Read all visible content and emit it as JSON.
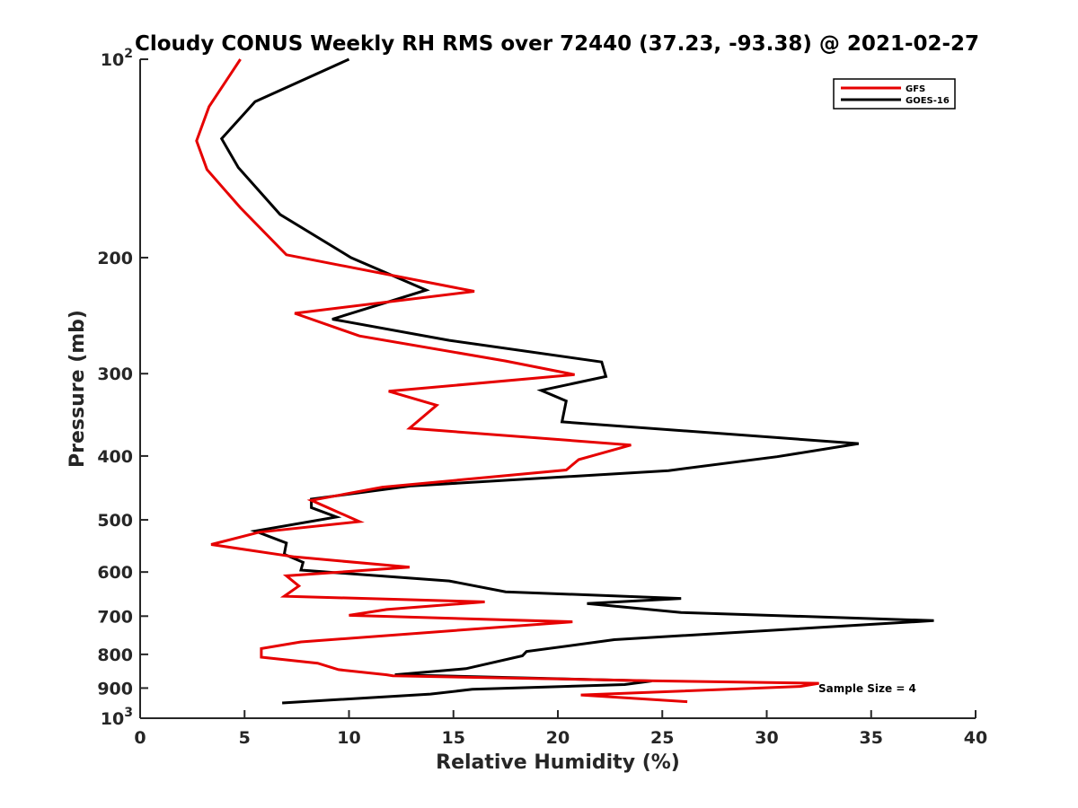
{
  "chart_data": {
    "type": "line",
    "title": "Cloudy CONUS Weekly RH RMS over 72440 (37.23, -93.38) @ 2021-02-27",
    "xlabel": "Relative Humidity (%)",
    "ylabel": "Pressure (mb)",
    "xlim": [
      0,
      40
    ],
    "ylim": [
      100,
      1000
    ],
    "y_scale": "log",
    "y_reversed": true,
    "x_ticks": [
      "0",
      "5",
      "10",
      "15",
      "20",
      "25",
      "30",
      "35",
      "40"
    ],
    "y_ticks": [
      {
        "value": 100,
        "base": "10",
        "exp": "2"
      },
      {
        "value": 200,
        "label": "200"
      },
      {
        "value": 300,
        "label": "300"
      },
      {
        "value": 400,
        "label": "400"
      },
      {
        "value": 500,
        "label": "500"
      },
      {
        "value": 600,
        "label": "600"
      },
      {
        "value": 700,
        "label": "700"
      },
      {
        "value": 800,
        "label": "800"
      },
      {
        "value": 900,
        "label": "900"
      },
      {
        "value": 1000,
        "base": "10",
        "exp": "3"
      }
    ],
    "legend_position": "top-right",
    "grid": false,
    "annotation": "Sample Size = 4",
    "series": [
      {
        "name": "GFS",
        "color": "#e60000",
        "points": [
          [
            4.8,
            100
          ],
          [
            3.3,
            118
          ],
          [
            2.7,
            133
          ],
          [
            3.2,
            147
          ],
          [
            4.8,
            168
          ],
          [
            7.0,
            198
          ],
          [
            16.0,
            225
          ],
          [
            7.4,
            243
          ],
          [
            10.5,
            263
          ],
          [
            17.5,
            287
          ],
          [
            20.8,
            301
          ],
          [
            11.9,
            319
          ],
          [
            14.2,
            335
          ],
          [
            12.9,
            363
          ],
          [
            23.5,
            385
          ],
          [
            21.0,
            405
          ],
          [
            20.4,
            420
          ],
          [
            11.6,
            446
          ],
          [
            8.2,
            467
          ],
          [
            10.5,
            503
          ],
          [
            5.7,
            522
          ],
          [
            3.4,
            545
          ],
          [
            7.4,
            569
          ],
          [
            12.9,
            590
          ],
          [
            7.0,
            608
          ],
          [
            7.6,
            630
          ],
          [
            6.9,
            653
          ],
          [
            16.5,
            666
          ],
          [
            11.8,
            684
          ],
          [
            10.0,
            698
          ],
          [
            20.7,
            714
          ],
          [
            7.7,
            766
          ],
          [
            5.8,
            784
          ],
          [
            5.8,
            808
          ],
          [
            8.5,
            825
          ],
          [
            9.5,
            844
          ],
          [
            11.8,
            859
          ],
          [
            12.1,
            862
          ],
          [
            24.3,
            877
          ],
          [
            32.5,
            885
          ],
          [
            31.6,
            895
          ],
          [
            21.1,
            922
          ],
          [
            26.2,
            944
          ]
        ]
      },
      {
        "name": "GOES-16",
        "color": "#000000",
        "points": [
          [
            10.0,
            100
          ],
          [
            5.5,
            116
          ],
          [
            3.9,
            132
          ],
          [
            4.7,
            146
          ],
          [
            6.7,
            172
          ],
          [
            10.1,
            200
          ],
          [
            13.7,
            224
          ],
          [
            11.4,
            236
          ],
          [
            9.2,
            248
          ],
          [
            14.8,
            267
          ],
          [
            22.1,
            288
          ],
          [
            22.3,
            303
          ],
          [
            19.2,
            318
          ],
          [
            20.4,
            330
          ],
          [
            20.2,
            355
          ],
          [
            34.4,
            383
          ],
          [
            30.5,
            401
          ],
          [
            25.3,
            421
          ],
          [
            13.0,
            444
          ],
          [
            8.2,
            465
          ],
          [
            8.2,
            479
          ],
          [
            9.4,
            495
          ],
          [
            5.5,
            520
          ],
          [
            7.0,
            542
          ],
          [
            6.9,
            564
          ],
          [
            7.8,
            580
          ],
          [
            7.7,
            596
          ],
          [
            14.8,
            619
          ],
          [
            17.5,
            643
          ],
          [
            25.9,
            658
          ],
          [
            21.4,
            670
          ],
          [
            25.9,
            691
          ],
          [
            38.0,
            711
          ],
          [
            22.7,
            760
          ],
          [
            18.5,
            792
          ],
          [
            18.3,
            804
          ],
          [
            15.6,
            841
          ],
          [
            12.2,
            859
          ],
          [
            24.5,
            878
          ],
          [
            23.2,
            889
          ],
          [
            15.9,
            904
          ],
          [
            13.9,
            919
          ],
          [
            6.8,
            948
          ]
        ]
      }
    ]
  }
}
